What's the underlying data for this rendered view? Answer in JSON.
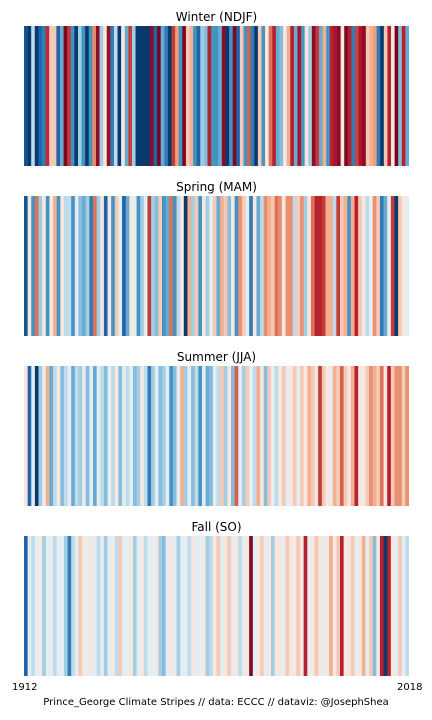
{
  "chart_data": {
    "type": "heatmap",
    "colormap": "RdBu_r",
    "value_range": [
      -1,
      1
    ],
    "x_start": 1912,
    "x_end": 2018,
    "xtick_labels": [
      "1912",
      "2018"
    ],
    "caption": "Prince_George Climate Stripes // data: ECCC // dataviz: @JosephShea",
    "panels": [
      {
        "title": "Winter (NDJF)",
        "values": [
          -0.84,
          -0.96,
          -0.14,
          -0.96,
          -0.76,
          -0.63,
          0.68,
          0.14,
          0.14,
          -0.76,
          -0.38,
          0.93,
          0.63,
          -0.5,
          -0.96,
          -0.21,
          -0.5,
          -0.96,
          -0.5,
          0.35,
          0.88,
          -0.21,
          0.05,
          0.83,
          -0.63,
          -0.14,
          -0.96,
          0.05,
          -0.38,
          0.63,
          -0.21,
          -0.96,
          -0.96,
          -0.96,
          -0.96,
          0.88,
          -0.76,
          0.95,
          -0.38,
          -0.63,
          -0.96,
          0.63,
          0.28,
          -0.5,
          0.93,
          0.14,
          0.22,
          -0.5,
          -0.76,
          -0.21,
          -0.29,
          0.72,
          -0.5,
          -0.5,
          -0.38,
          0.88,
          -0.96,
          -0.5,
          0.93,
          -0.76,
          0.14,
          -0.5,
          0.5,
          -0.63,
          -0.96,
          0.14,
          -0.5,
          0.05,
          0.44,
          0.72,
          -0.38,
          -0.29,
          0.05,
          0.22,
          0.72,
          -0.38,
          0.78,
          -0.5,
          0.05,
          -0.21,
          0.88,
          0.63,
          -0.38,
          0.22,
          -0.5,
          0.72,
          0.78,
          0.88,
          0.05,
          0.93,
          0.72,
          -0.63,
          0.6,
          0.78,
          0.88,
          0.14,
          0.22,
          0.28,
          -0.63,
          -0.96,
          0.14,
          0.72,
          0.05,
          0.95,
          -0.29,
          0.72,
          -0.38
        ]
      },
      {
        "title": "Spring (MAM)",
        "values": [
          -0.84,
          0.05,
          -0.5,
          0.44,
          -0.21,
          0.05,
          -0.5,
          0.05,
          0.22,
          -0.5,
          0.05,
          -0.14,
          -0.14,
          -0.5,
          -0.05,
          -0.29,
          -0.38,
          -0.21,
          -0.63,
          0.44,
          -0.21,
          0.05,
          -0.76,
          0.05,
          -0.5,
          0.14,
          -0.05,
          -0.76,
          -0.38,
          0.05,
          -0.05,
          -0.5,
          -0.21,
          -0.05,
          0.63,
          -0.21,
          -0.29,
          0.14,
          -0.5,
          -0.38,
          0.44,
          -0.5,
          -0.14,
          0.05,
          -0.96,
          0.22,
          -0.21,
          0.14,
          -0.5,
          0.05,
          -0.21,
          -0.05,
          0.14,
          -0.38,
          0.22,
          0.14,
          -0.29,
          0.05,
          -0.5,
          0.33,
          0.14,
          -0.05,
          -0.63,
          0.05,
          -0.38,
          -0.14,
          0.33,
          0.22,
          0.14,
          0.44,
          0.33,
          0.05,
          0.33,
          0.33,
          -0.14,
          0.14,
          0.33,
          -0.21,
          0.05,
          0.44,
          0.72,
          0.72,
          0.63,
          0.22,
          0.22,
          -0.14,
          0.63,
          0.14,
          0.22,
          -0.5,
          0.22,
          0.72,
          0.14,
          0.05,
          -0.14,
          -0.05,
          0.33,
          0.14,
          -0.63,
          -0.38,
          -0.05,
          0.63,
          -0.96,
          0.14,
          0.05,
          -0.05
        ]
      },
      {
        "title": "Summer (JJA)",
        "values": [
          0.05,
          -0.76,
          -0.05,
          -0.96,
          -0.21,
          -0.05,
          0.22,
          -0.38,
          -0.14,
          0.05,
          -0.29,
          -0.14,
          -0.05,
          -0.38,
          -0.14,
          -0.21,
          -0.05,
          -0.29,
          -0.05,
          -0.38,
          -0.05,
          -0.14,
          -0.29,
          -0.05,
          -0.14,
          0.05,
          -0.29,
          -0.05,
          -0.14,
          -0.05,
          -0.29,
          -0.21,
          0.05,
          -0.14,
          -0.63,
          -0.21,
          -0.05,
          -0.29,
          -0.21,
          -0.05,
          -0.5,
          -0.29,
          -0.05,
          0.22,
          -0.21,
          -0.05,
          -0.29,
          -0.14,
          -0.5,
          -0.05,
          -0.38,
          -0.29,
          -0.05,
          -0.14,
          0.14,
          -0.21,
          0.05,
          -0.29,
          0.5,
          -0.05,
          -0.21,
          0.14,
          -0.05,
          -0.14,
          0.22,
          0.05,
          -0.29,
          0.14,
          -0.05,
          -0.14,
          0.05,
          0.14,
          -0.05,
          0.05,
          0.14,
          -0.05,
          0.14,
          0.05,
          0.22,
          0.14,
          0.05,
          0.63,
          0.14,
          0.05,
          -0.05,
          0.22,
          0.14,
          0.5,
          0.14,
          0.05,
          0.22,
          0.72,
          0.05,
          0.05,
          0.14,
          0.33,
          0.22,
          0.14,
          0.44,
          0.05,
          0.72,
          0.14,
          0.33,
          0.33,
          0.14,
          0.33
        ]
      },
      {
        "title": "Fall (SO)",
        "values": [
          -0.76,
          -0.05,
          -0.14,
          -0.05,
          0.05,
          -0.21,
          -0.05,
          -0.05,
          -0.14,
          -0.05,
          -0.05,
          -0.21,
          -0.63,
          -0.14,
          -0.05,
          0.14,
          0.05,
          -0.05,
          0.05,
          -0.05,
          -0.14,
          -0.05,
          -0.21,
          -0.05,
          0.05,
          -0.14,
          0.14,
          -0.05,
          -0.05,
          0.05,
          -0.21,
          -0.05,
          0.05,
          -0.14,
          -0.05,
          -0.05,
          0.05,
          -0.21,
          -0.29,
          -0.05,
          0.05,
          -0.05,
          -0.21,
          -0.05,
          -0.05,
          -0.14,
          0.05,
          -0.05,
          -0.05,
          0.05,
          -0.21,
          -0.14,
          0.05,
          0.14,
          -0.05,
          0.05,
          0.14,
          -0.05,
          0.05,
          -0.14,
          -0.05,
          0.05,
          0.93,
          -0.05,
          0.05,
          0.14,
          -0.05,
          0.05,
          -0.21,
          0.05,
          0.05,
          -0.05,
          0.14,
          0.05,
          0.05,
          0.14,
          0.05,
          0.72,
          -0.05,
          0.05,
          0.14,
          0.05,
          -0.05,
          0.05,
          0.22,
          0.05,
          0.14,
          0.72,
          0.05,
          0.05,
          0.14,
          -0.05,
          0.05,
          0.22,
          -0.05,
          0.14,
          -0.29,
          0.05,
          0.72,
          -0.96,
          0.72,
          0.05,
          -0.05,
          0.14,
          -0.05,
          -0.14
        ]
      }
    ]
  }
}
